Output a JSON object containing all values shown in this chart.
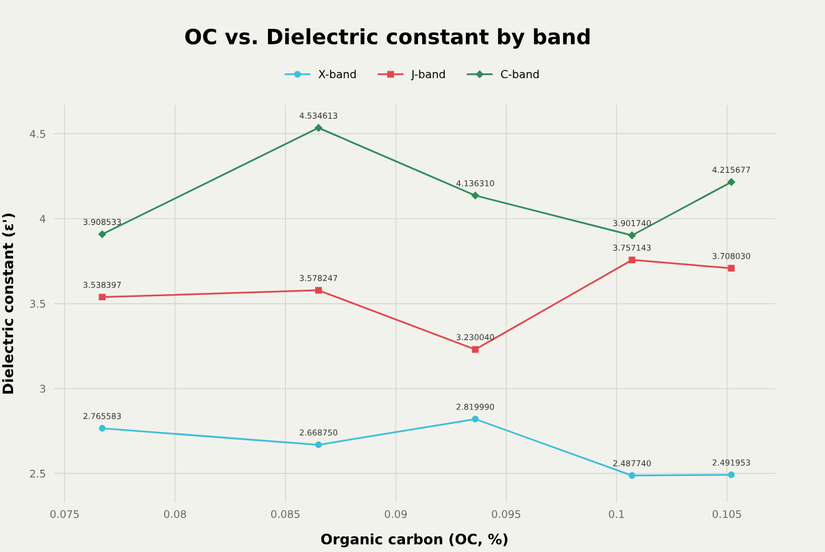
{
  "chart_data": {
    "type": "line",
    "title": "OC vs. Dielectric constant by band",
    "xlabel": "Organic carbon (OC, %)",
    "ylabel": "Dielectric constant (ε')",
    "x": [
      0.0767,
      0.0865,
      0.0936,
      0.1007,
      0.1052
    ],
    "series": [
      {
        "name": "X-band",
        "color": "#3bbfd6",
        "marker": "circle",
        "values": [
          2.765583,
          2.66875,
          2.81999,
          2.48774,
          2.491953
        ],
        "value_labels": [
          "2.765583",
          "2.668750",
          "2.819990",
          "2.487740",
          "2.491953"
        ]
      },
      {
        "name": "J-band",
        "color": "#e0474c",
        "marker": "square",
        "values": [
          3.538397,
          3.578247,
          3.23004,
          3.757143,
          3.70803
        ],
        "value_labels": [
          "3.538397",
          "3.578247",
          "3.230040",
          "3.757143",
          "3.708030"
        ]
      },
      {
        "name": "C-band",
        "color": "#2e8b57",
        "marker": "diamond",
        "values": [
          3.908533,
          4.534613,
          4.13631,
          3.90174,
          4.215677
        ],
        "value_labels": [
          "3.908533",
          "4.534613",
          "4.136310",
          "3.901740",
          "4.215677"
        ]
      }
    ],
    "xlim": [
      0.0745,
      0.1072
    ],
    "xticks": [
      0.075,
      0.08,
      0.085,
      0.09,
      0.095,
      0.1,
      0.105
    ],
    "ylim": [
      2.33,
      4.67
    ],
    "yticks": [
      2.5,
      3,
      3.5,
      4,
      4.5
    ],
    "grid": true,
    "legend": "top",
    "line_style": "solid"
  }
}
